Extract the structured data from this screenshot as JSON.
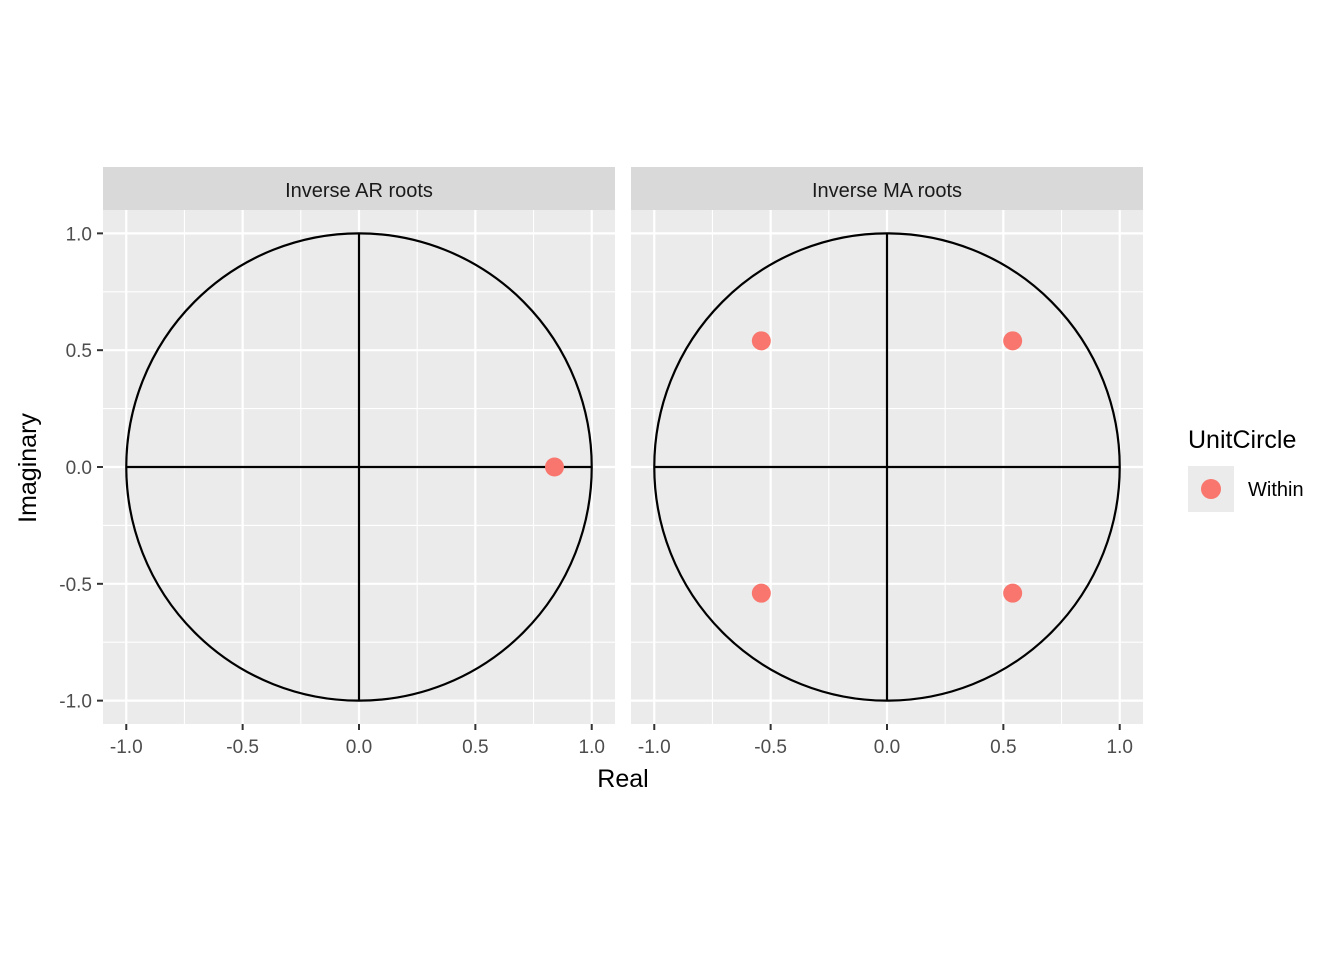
{
  "chart_data": {
    "type": "scatter",
    "xlabel": "Real",
    "ylabel": "Imaginary",
    "xlim": [
      -1.1,
      1.1
    ],
    "ylim": [
      -1.1,
      1.1
    ],
    "x_ticks": [
      -1.0,
      -0.5,
      0.0,
      0.5,
      1.0
    ],
    "y_ticks": [
      -1.0,
      -0.5,
      0.0,
      0.5,
      1.0
    ],
    "x_tick_labels": [
      "-1.0",
      "-0.5",
      "0.0",
      "0.5",
      "1.0"
    ],
    "y_tick_labels": [
      "-1.0",
      "-0.5",
      "0.0",
      "0.5",
      "1.0"
    ],
    "grid": true,
    "unit_circle": true,
    "legend": {
      "title": "UnitCircle",
      "position": "right",
      "entries": [
        {
          "label": "Within",
          "color": "#F8766D"
        }
      ]
    },
    "panels": [
      {
        "title": "Inverse AR roots",
        "points": [
          {
            "x": 0.84,
            "y": 0.0,
            "group": "Within"
          }
        ]
      },
      {
        "title": "Inverse MA roots",
        "points": [
          {
            "x": -0.54,
            "y": 0.54,
            "group": "Within"
          },
          {
            "x": 0.54,
            "y": 0.54,
            "group": "Within"
          },
          {
            "x": -0.54,
            "y": -0.54,
            "group": "Within"
          },
          {
            "x": 0.54,
            "y": -0.54,
            "group": "Within"
          }
        ]
      }
    ]
  },
  "colors": {
    "panel_background": "#EBEBEB",
    "strip_background": "#D9D9D9",
    "grid_line": "#FFFFFF",
    "point": "#F8766D",
    "circle_and_axes": "#000000"
  }
}
